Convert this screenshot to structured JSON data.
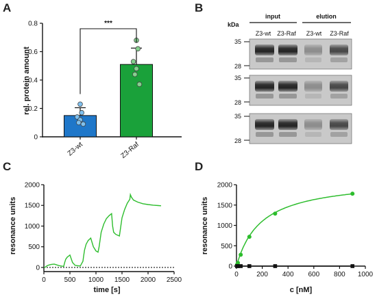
{
  "panels": {
    "A": "A",
    "B": "B",
    "C": "C",
    "D": "D"
  },
  "chart_data": [
    {
      "panel": "A",
      "type": "bar",
      "ylabel": "rel. protein amount",
      "ylim": [
        0,
        0.8
      ],
      "yticks": [
        "0",
        "0.2",
        "0.4",
        "0.6",
        "0.8"
      ],
      "categories": [
        "Z3-wt",
        "Z3-Raf"
      ],
      "values": [
        0.15,
        0.51
      ],
      "errors": [
        0.055,
        0.115
      ],
      "colors": [
        "#1f77c9",
        "#1aa13a"
      ],
      "points": [
        [
          0.23,
          0.17,
          0.14,
          0.12,
          0.1,
          0.09
        ],
        [
          0.68,
          0.62,
          0.53,
          0.48,
          0.44,
          0.37
        ]
      ],
      "significance": "***"
    },
    {
      "panel": "B",
      "type": "table",
      "kda_label": "kDa",
      "group_labels": [
        "input",
        "elution"
      ],
      "lane_labels": [
        "Z3-wt",
        "Z3-Raf",
        "Z3-wt",
        "Z3-Raf"
      ],
      "blots": [
        {
          "markers": [
            "35",
            "28"
          ]
        },
        {
          "markers": [
            "35",
            "28"
          ]
        },
        {
          "markers": [
            "35",
            "28"
          ]
        }
      ]
    },
    {
      "panel": "C",
      "type": "line",
      "xlabel": "time [s]",
      "ylabel": "resonance units",
      "xlim": [
        0,
        2500
      ],
      "ylim": [
        -100,
        2000
      ],
      "xticks": [
        "0",
        "500",
        "1000",
        "1500",
        "2000",
        "2500"
      ],
      "yticks": [
        "0",
        "500",
        "1000",
        "1500",
        "2000"
      ],
      "color": "#2dbd2d",
      "series": [
        {
          "x": [
            0,
            30,
            60,
            100,
            150,
            200,
            250,
            300,
            350,
            380,
            400,
            420,
            450,
            480,
            500,
            550,
            600,
            650,
            700,
            750,
            760,
            780,
            810,
            850,
            900,
            950,
            1000,
            1040,
            1060,
            1100,
            1150,
            1200,
            1250,
            1300,
            1320,
            1340,
            1380,
            1450,
            1500,
            1550,
            1600,
            1650,
            1660,
            1680,
            1720,
            1800,
            1900,
            2000,
            2100,
            2200,
            2250
          ],
          "y": [
            0,
            10,
            40,
            60,
            75,
            80,
            60,
            40,
            30,
            25,
            120,
            200,
            250,
            280,
            300,
            120,
            50,
            40,
            35,
            150,
            250,
            420,
            560,
            650,
            710,
            500,
            400,
            370,
            500,
            850,
            1050,
            1180,
            1250,
            1300,
            1000,
            850,
            800,
            760,
            1200,
            1400,
            1550,
            1650,
            1760,
            1700,
            1630,
            1580,
            1540,
            1520,
            1505,
            1495,
            1490
          ]
        }
      ],
      "baseline": 0
    },
    {
      "panel": "D",
      "type": "scatter",
      "xlabel": "c [nM]",
      "ylabel": "resonance units",
      "xlim": [
        0,
        1000
      ],
      "ylim": [
        -50,
        2000
      ],
      "xticks": [
        "0",
        "200",
        "400",
        "600",
        "800",
        "1000"
      ],
      "yticks": [
        "0",
        "500",
        "1000",
        "1500",
        "2000"
      ],
      "series": [
        {
          "color": "#2dbd2d",
          "marker": "circle",
          "x": [
            3.7,
            11,
            33,
            100,
            300,
            900
          ],
          "y": [
            30,
            80,
            280,
            720,
            1290,
            1780
          ],
          "fit": {
            "bmax": 2150,
            "kd": 190
          }
        },
        {
          "color": "#111111",
          "marker": "square",
          "x": [
            3.7,
            11,
            33,
            100,
            300,
            900
          ],
          "y": [
            0,
            0,
            0,
            0,
            0,
            0
          ]
        }
      ]
    }
  ]
}
